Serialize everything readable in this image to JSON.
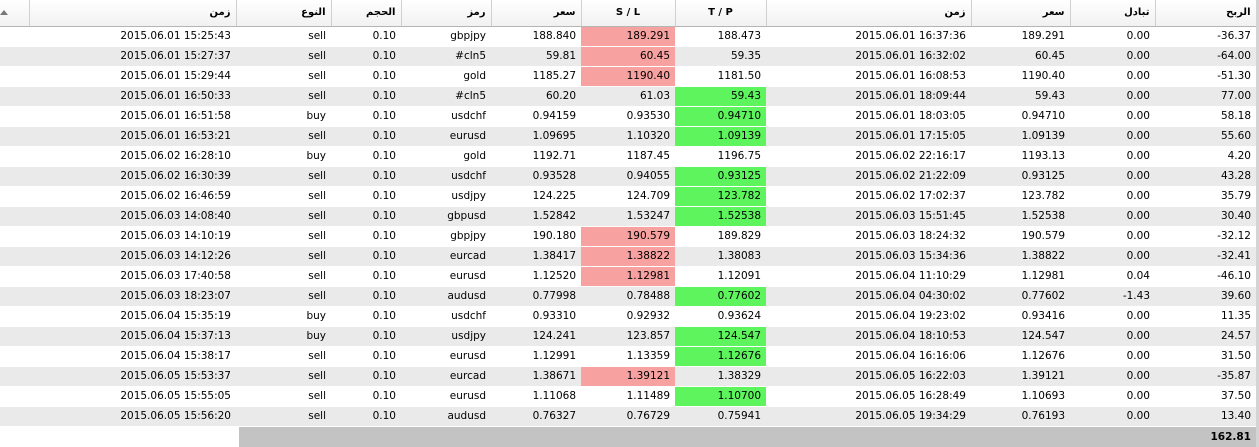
{
  "headers": {
    "open_time": "زمن",
    "type": "النوع",
    "volume": "الحجم",
    "symbol": "رمز",
    "price": "سعر",
    "sl": "S / L",
    "tp": "T / P",
    "close_time": "زمن",
    "close_price": "سعر",
    "swap": "تبادل",
    "profit": "الربح"
  },
  "rows": [
    {
      "open_time": "2015.06.01 15:25:43",
      "type": "sell",
      "volume": "0.10",
      "symbol": "gbpjpy",
      "price": "188.840",
      "sl": "189.291",
      "tp": "188.473",
      "close_time": "2015.06.01 16:37:36",
      "close_price": "189.291",
      "swap": "0.00",
      "profit": "-36.37",
      "hit": "sl"
    },
    {
      "open_time": "2015.06.01 15:27:37",
      "type": "sell",
      "volume": "0.10",
      "symbol": "#cln5",
      "price": "59.81",
      "sl": "60.45",
      "tp": "59.35",
      "close_time": "2015.06.01 16:32:02",
      "close_price": "60.45",
      "swap": "0.00",
      "profit": "-64.00",
      "hit": "sl"
    },
    {
      "open_time": "2015.06.01 15:29:44",
      "type": "sell",
      "volume": "0.10",
      "symbol": "gold",
      "price": "1185.27",
      "sl": "1190.40",
      "tp": "1181.50",
      "close_time": "2015.06.01 16:08:53",
      "close_price": "1190.40",
      "swap": "0.00",
      "profit": "-51.30",
      "hit": "sl"
    },
    {
      "open_time": "2015.06.01 16:50:33",
      "type": "sell",
      "volume": "0.10",
      "symbol": "#cln5",
      "price": "60.20",
      "sl": "61.03",
      "tp": "59.43",
      "close_time": "2015.06.01 18:09:44",
      "close_price": "59.43",
      "swap": "0.00",
      "profit": "77.00",
      "hit": "tp"
    },
    {
      "open_time": "2015.06.01 16:51:58",
      "type": "buy",
      "volume": "0.10",
      "symbol": "usdchf",
      "price": "0.94159",
      "sl": "0.93530",
      "tp": "0.94710",
      "close_time": "2015.06.01 18:03:05",
      "close_price": "0.94710",
      "swap": "0.00",
      "profit": "58.18",
      "hit": "tp"
    },
    {
      "open_time": "2015.06.01 16:53:21",
      "type": "sell",
      "volume": "0.10",
      "symbol": "eurusd",
      "price": "1.09695",
      "sl": "1.10320",
      "tp": "1.09139",
      "close_time": "2015.06.01 17:15:05",
      "close_price": "1.09139",
      "swap": "0.00",
      "profit": "55.60",
      "hit": "tp"
    },
    {
      "open_time": "2015.06.02 16:28:10",
      "type": "buy",
      "volume": "0.10",
      "symbol": "gold",
      "price": "1192.71",
      "sl": "1187.45",
      "tp": "1196.75",
      "close_time": "2015.06.02 22:16:17",
      "close_price": "1193.13",
      "swap": "0.00",
      "profit": "4.20",
      "hit": ""
    },
    {
      "open_time": "2015.06.02 16:30:39",
      "type": "sell",
      "volume": "0.10",
      "symbol": "usdchf",
      "price": "0.93528",
      "sl": "0.94055",
      "tp": "0.93125",
      "close_time": "2015.06.02 21:22:09",
      "close_price": "0.93125",
      "swap": "0.00",
      "profit": "43.28",
      "hit": "tp"
    },
    {
      "open_time": "2015.06.02 16:46:59",
      "type": "sell",
      "volume": "0.10",
      "symbol": "usdjpy",
      "price": "124.225",
      "sl": "124.709",
      "tp": "123.782",
      "close_time": "2015.06.02 17:02:37",
      "close_price": "123.782",
      "swap": "0.00",
      "profit": "35.79",
      "hit": "tp"
    },
    {
      "open_time": "2015.06.03 14:08:40",
      "type": "sell",
      "volume": "0.10",
      "symbol": "gbpusd",
      "price": "1.52842",
      "sl": "1.53247",
      "tp": "1.52538",
      "close_time": "2015.06.03 15:51:45",
      "close_price": "1.52538",
      "swap": "0.00",
      "profit": "30.40",
      "hit": "tp"
    },
    {
      "open_time": "2015.06.03 14:10:19",
      "type": "sell",
      "volume": "0.10",
      "symbol": "gbpjpy",
      "price": "190.180",
      "sl": "190.579",
      "tp": "189.829",
      "close_time": "2015.06.03 18:24:32",
      "close_price": "190.579",
      "swap": "0.00",
      "profit": "-32.12",
      "hit": "sl"
    },
    {
      "open_time": "2015.06.03 14:12:26",
      "type": "sell",
      "volume": "0.10",
      "symbol": "eurcad",
      "price": "1.38417",
      "sl": "1.38822",
      "tp": "1.38083",
      "close_time": "2015.06.03 15:34:36",
      "close_price": "1.38822",
      "swap": "0.00",
      "profit": "-32.41",
      "hit": "sl"
    },
    {
      "open_time": "2015.06.03 17:40:58",
      "type": "sell",
      "volume": "0.10",
      "symbol": "eurusd",
      "price": "1.12520",
      "sl": "1.12981",
      "tp": "1.12091",
      "close_time": "2015.06.04 11:10:29",
      "close_price": "1.12981",
      "swap": "0.04",
      "profit": "-46.10",
      "hit": "sl"
    },
    {
      "open_time": "2015.06.03 18:23:07",
      "type": "sell",
      "volume": "0.10",
      "symbol": "audusd",
      "price": "0.77998",
      "sl": "0.78488",
      "tp": "0.77602",
      "close_time": "2015.06.04 04:30:02",
      "close_price": "0.77602",
      "swap": "-1.43",
      "profit": "39.60",
      "hit": "tp"
    },
    {
      "open_time": "2015.06.04 15:35:19",
      "type": "buy",
      "volume": "0.10",
      "symbol": "usdchf",
      "price": "0.93310",
      "sl": "0.92932",
      "tp": "0.93624",
      "close_time": "2015.06.04 19:23:02",
      "close_price": "0.93416",
      "swap": "0.00",
      "profit": "11.35",
      "hit": ""
    },
    {
      "open_time": "2015.06.04 15:37:13",
      "type": "buy",
      "volume": "0.10",
      "symbol": "usdjpy",
      "price": "124.241",
      "sl": "123.857",
      "tp": "124.547",
      "close_time": "2015.06.04 18:10:53",
      "close_price": "124.547",
      "swap": "0.00",
      "profit": "24.57",
      "hit": "tp"
    },
    {
      "open_time": "2015.06.04 15:38:17",
      "type": "sell",
      "volume": "0.10",
      "symbol": "eurusd",
      "price": "1.12991",
      "sl": "1.13359",
      "tp": "1.12676",
      "close_time": "2015.06.04 16:16:06",
      "close_price": "1.12676",
      "swap": "0.00",
      "profit": "31.50",
      "hit": "tp"
    },
    {
      "open_time": "2015.06.05 15:53:37",
      "type": "sell",
      "volume": "0.10",
      "symbol": "eurcad",
      "price": "1.38671",
      "sl": "1.39121",
      "tp": "1.38329",
      "close_time": "2015.06.05 16:22:03",
      "close_price": "1.39121",
      "swap": "0.00",
      "profit": "-35.87",
      "hit": "sl"
    },
    {
      "open_time": "2015.06.05 15:55:05",
      "type": "sell",
      "volume": "0.10",
      "symbol": "eurusd",
      "price": "1.11068",
      "sl": "1.11489",
      "tp": "1.10700",
      "close_time": "2015.06.05 16:28:49",
      "close_price": "1.10693",
      "swap": "0.00",
      "profit": "37.50",
      "hit": "tp"
    },
    {
      "open_time": "2015.06.05 15:56:20",
      "type": "sell",
      "volume": "0.10",
      "symbol": "audusd",
      "price": "0.76327",
      "sl": "0.76729",
      "tp": "0.75941",
      "close_time": "2015.06.05 19:34:29",
      "close_price": "0.76193",
      "swap": "0.00",
      "profit": "13.40",
      "hit": ""
    }
  ],
  "total_profit": "162.81",
  "colors": {
    "sl_hit": "#f7a1a1",
    "tp_hit": "#5df45d",
    "stripe": "#eaeaea",
    "total_bar": "#c3c3c3"
  }
}
